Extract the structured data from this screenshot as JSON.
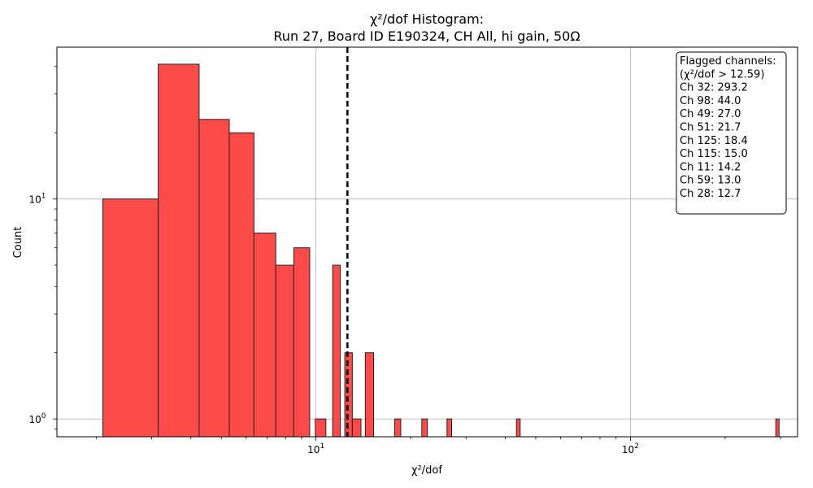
{
  "chart_data": {
    "type": "bar",
    "title_line1": "χ²/dof Histogram:",
    "title_line2": "Run 27, Board ID E190324, CH All, hi gain, 50Ω",
    "xlabel": "χ²/dof",
    "ylabel": "Count",
    "x_scale": "log",
    "y_scale": "log",
    "xlim": [
      1.5,
      340
    ],
    "ylim": [
      0.83,
      49
    ],
    "x_ticks": [
      {
        "value": 10,
        "base": "10",
        "exp": "1"
      },
      {
        "value": 100,
        "base": "10",
        "exp": "2"
      }
    ],
    "y_ticks": [
      {
        "value": 1,
        "base": "10",
        "exp": "0"
      },
      {
        "value": 10,
        "base": "10",
        "exp": "1"
      }
    ],
    "grid": true,
    "bar_color": "#ff4a4a",
    "edge_color": "#222222",
    "threshold": 12.59,
    "threshold_style": "dashed black vertical line",
    "bins": [
      {
        "x0": 2.1,
        "x1": 3.15,
        "count": 10
      },
      {
        "x0": 3.15,
        "x1": 4.25,
        "count": 41
      },
      {
        "x0": 4.25,
        "x1": 5.3,
        "count": 23
      },
      {
        "x0": 5.3,
        "x1": 6.35,
        "count": 20
      },
      {
        "x0": 6.35,
        "x1": 7.45,
        "count": 7
      },
      {
        "x0": 7.45,
        "x1": 8.5,
        "count": 5
      },
      {
        "x0": 8.5,
        "x1": 9.55,
        "count": 6
      },
      {
        "x0": 9.95,
        "x1": 10.75,
        "count": 1
      },
      {
        "x0": 11.3,
        "x1": 11.95,
        "count": 5
      },
      {
        "x0": 12.35,
        "x1": 13.05,
        "count": 2
      },
      {
        "x0": 13.05,
        "x1": 13.9,
        "count": 1
      },
      {
        "x0": 14.35,
        "x1": 15.25,
        "count": 2
      },
      {
        "x0": 17.8,
        "x1": 18.6,
        "count": 1
      },
      {
        "x0": 21.7,
        "x1": 22.6,
        "count": 1
      },
      {
        "x0": 26.1,
        "x1": 27.0,
        "count": 1
      },
      {
        "x0": 43.4,
        "x1": 44.6,
        "count": 1
      },
      {
        "x0": 290.0,
        "x1": 297.0,
        "count": 1
      }
    ],
    "legend": {
      "placement": "top-right",
      "lines": [
        "Flagged channels:",
        "(χ²/dof > 12.59)",
        "Ch 32: 293.2",
        "Ch 98: 44.0",
        "Ch 49: 27.0",
        "Ch 51: 21.7",
        "Ch 125: 18.4",
        "Ch 115: 15.0",
        "Ch 11: 14.2",
        "Ch 59: 13.0",
        "Ch 28: 12.7"
      ]
    }
  }
}
